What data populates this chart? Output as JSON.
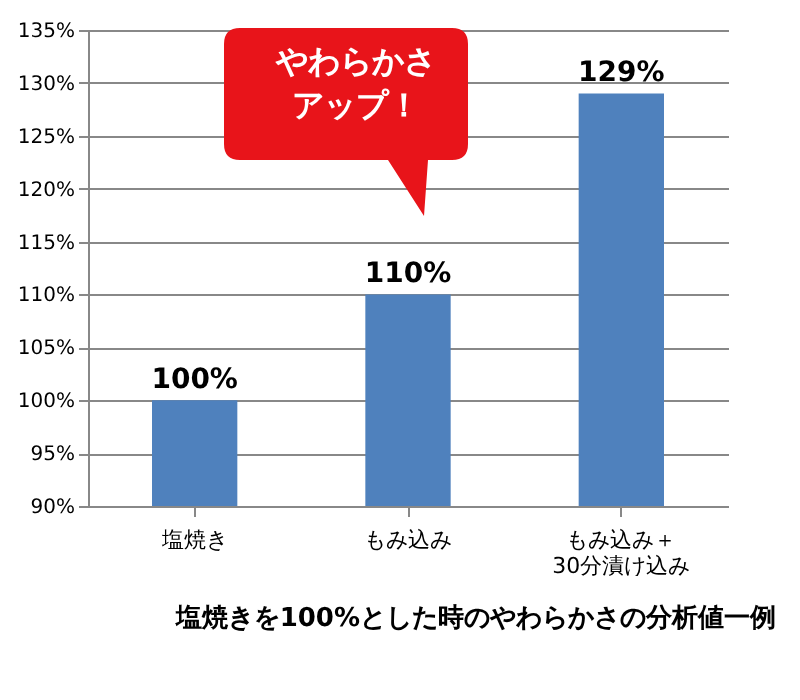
{
  "chart_data": {
    "type": "bar",
    "categories": [
      "塩焼き",
      "もみ込み",
      "もみ込み＋\n30分漬け込み"
    ],
    "values": [
      100,
      110,
      129
    ],
    "value_labels": [
      "100%",
      "110%",
      "129%"
    ],
    "color": "#4f81bd",
    "ylim": [
      90,
      135
    ],
    "yticks": [
      {
        "value": 90,
        "label": "90%"
      },
      {
        "value": 95,
        "label": "95%"
      },
      {
        "value": 100,
        "label": "100%"
      },
      {
        "value": 105,
        "label": "105%"
      },
      {
        "value": 110,
        "label": "110%"
      },
      {
        "value": 115,
        "label": "115%"
      },
      {
        "value": 120,
        "label": "120%"
      },
      {
        "value": 125,
        "label": "125%"
      },
      {
        "value": 130,
        "label": "130%"
      },
      {
        "value": 135,
        "label": "135%"
      }
    ],
    "grid": "y",
    "annotations": [
      "やわらかさアップ！",
      "塩焼きを100%とした時のやわらかさの分析値一例"
    ]
  }
}
